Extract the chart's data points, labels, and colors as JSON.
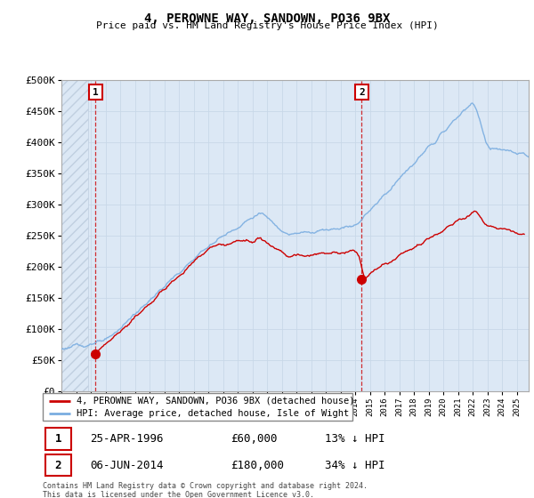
{
  "title": "4, PEROWNE WAY, SANDOWN, PO36 9BX",
  "subtitle": "Price paid vs. HM Land Registry's House Price Index (HPI)",
  "legend_line1": "4, PEROWNE WAY, SANDOWN, PO36 9BX (detached house)",
  "legend_line2": "HPI: Average price, detached house, Isle of Wight",
  "annotation1_date": "25-APR-1996",
  "annotation1_price": "£60,000",
  "annotation1_hpi": "13% ↓ HPI",
  "annotation2_date": "06-JUN-2014",
  "annotation2_price": "£180,000",
  "annotation2_hpi": "34% ↓ HPI",
  "footer": "Contains HM Land Registry data © Crown copyright and database right 2024.\nThis data is licensed under the Open Government Licence v3.0.",
  "sale1_year": 1996.32,
  "sale1_price": 60000,
  "sale2_year": 2014.43,
  "sale2_price": 180000,
  "hpi_color": "#7aade0",
  "price_color": "#cc0000",
  "bg_blue": "#dce8f5",
  "hatch_color": "#c0cfe0",
  "grid_color": "#c8d8e8",
  "ylim": [
    0,
    500000
  ],
  "xlim_start": 1994,
  "xlim_end": 2025.8
}
